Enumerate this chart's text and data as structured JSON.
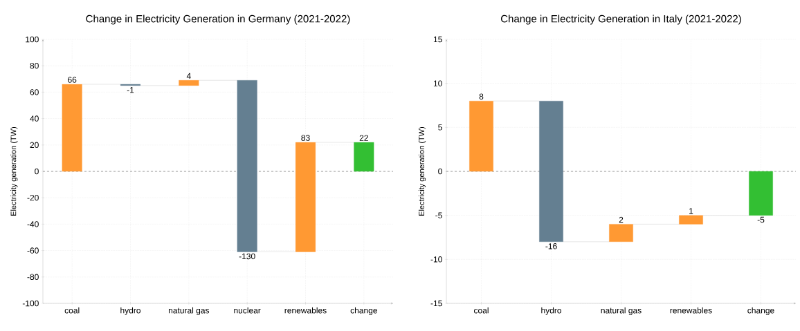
{
  "chart_data": [
    {
      "type": "bar",
      "title": "Change in Electricity Generation in Germany (2021-2022)",
      "ylabel": "Electricity generation (TW)",
      "categories": [
        "coal",
        "hydro",
        "natural gas",
        "nuclear",
        "renewables",
        "change"
      ],
      "values": [
        66,
        -1,
        4,
        -130,
        83,
        22
      ],
      "base": [
        0,
        66,
        65,
        69,
        -61,
        0
      ],
      "colors": [
        "#ff9933",
        "#647f91",
        "#ff9933",
        "#647f91",
        "#ff9933",
        "#33bf33"
      ],
      "ylim": [
        -100,
        100
      ],
      "yticks": [
        -100,
        -80,
        -60,
        -40,
        -20,
        0,
        20,
        40,
        60,
        80,
        100
      ],
      "grid": true,
      "data_labels": true,
      "ref_lines": [
        {
          "axis": "y",
          "value": 0,
          "color": "#999999",
          "line_style": "dashed"
        }
      ]
    },
    {
      "type": "bar",
      "title": "Change in Electricity Generation in Italy (2021-2022)",
      "ylabel": "Electricity generation (TW)",
      "categories": [
        "coal",
        "hydro",
        "natural gas",
        "renewables",
        "change"
      ],
      "values": [
        8,
        -16,
        2,
        1,
        -5
      ],
      "base": [
        0,
        8,
        -8,
        -6,
        0
      ],
      "colors": [
        "#ff9933",
        "#647f91",
        "#ff9933",
        "#ff9933",
        "#33bf33"
      ],
      "ylim": [
        -15,
        15
      ],
      "yticks": [
        -15,
        -10,
        -5,
        0,
        5,
        10,
        15
      ],
      "grid": true,
      "data_labels": true,
      "ref_lines": [
        {
          "axis": "y",
          "value": 0,
          "color": "#999999",
          "line_style": "dashed"
        }
      ]
    }
  ]
}
